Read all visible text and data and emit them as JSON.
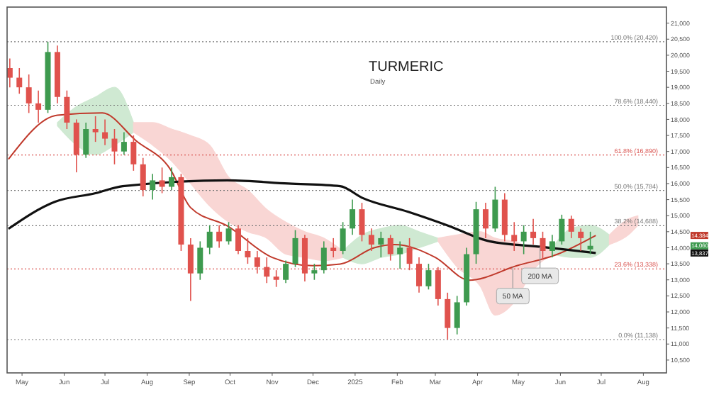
{
  "chart_data": {
    "type": "candlestick",
    "title": "TURMERIC",
    "subtitle": "Daily",
    "x": [
      "2024-04-22",
      "2024-04-29",
      "2024-05-06",
      "2024-05-13",
      "2024-05-20",
      "2024-05-27",
      "2024-06-03",
      "2024-06-10",
      "2024-06-17",
      "2024-06-24",
      "2024-07-01",
      "2024-07-08",
      "2024-07-15",
      "2024-07-22",
      "2024-07-29",
      "2024-08-05",
      "2024-08-12",
      "2024-08-19",
      "2024-08-26",
      "2024-09-02",
      "2024-09-09",
      "2024-09-16",
      "2024-09-23",
      "2024-09-30",
      "2024-10-07",
      "2024-10-14",
      "2024-10-21",
      "2024-10-28",
      "2024-11-04",
      "2024-11-11",
      "2024-11-18",
      "2024-11-25",
      "2024-12-02",
      "2024-12-09",
      "2024-12-16",
      "2024-12-23",
      "2024-12-30",
      "2025-01-06",
      "2025-01-13",
      "2025-01-20",
      "2025-01-27",
      "2025-02-03",
      "2025-02-10",
      "2025-02-17",
      "2025-02-24",
      "2025-03-03",
      "2025-03-10",
      "2025-03-17",
      "2025-03-24",
      "2025-03-31",
      "2025-04-07",
      "2025-04-14",
      "2025-04-21",
      "2025-04-28",
      "2025-05-05",
      "2025-05-12",
      "2025-05-19",
      "2025-05-26",
      "2025-06-02",
      "2025-06-09",
      "2025-06-16",
      "2025-06-23"
    ],
    "ohlc": [
      [
        19600,
        19900,
        19000,
        19300
      ],
      [
        19300,
        19600,
        18800,
        19000
      ],
      [
        19000,
        19400,
        18200,
        18500
      ],
      [
        18500,
        18900,
        17900,
        18300
      ],
      [
        18300,
        20420,
        18200,
        20100
      ],
      [
        20100,
        20300,
        18500,
        18700
      ],
      [
        18700,
        18900,
        17700,
        17900
      ],
      [
        17900,
        18000,
        16350,
        16900
      ],
      [
        16900,
        17900,
        16800,
        17700
      ],
      [
        17700,
        18100,
        17300,
        17600
      ],
      [
        17600,
        18000,
        17200,
        17400
      ],
      [
        17400,
        17700,
        16600,
        17000
      ],
      [
        17000,
        17600,
        16900,
        17300
      ],
      [
        17300,
        17500,
        16400,
        16600
      ],
      [
        16600,
        16800,
        15600,
        15800
      ],
      [
        15800,
        16300,
        15500,
        16100
      ],
      [
        16100,
        16500,
        15700,
        15900
      ],
      [
        15900,
        16500,
        15800,
        16200
      ],
      [
        16200,
        16300,
        13900,
        14100
      ],
      [
        14100,
        14300,
        12340,
        13200
      ],
      [
        13200,
        14200,
        13000,
        14000
      ],
      [
        14000,
        14700,
        13800,
        14500
      ],
      [
        14500,
        14700,
        14000,
        14200
      ],
      [
        14200,
        14800,
        14100,
        14600
      ],
      [
        14600,
        14700,
        13800,
        13900
      ],
      [
        13900,
        14300,
        13500,
        13700
      ],
      [
        13700,
        13900,
        13200,
        13400
      ],
      [
        13400,
        13700,
        12900,
        13100
      ],
      [
        13100,
        13300,
        12780,
        13000
      ],
      [
        13000,
        13600,
        12900,
        13500
      ],
      [
        13500,
        14550,
        13400,
        14300
      ],
      [
        14300,
        14400,
        12950,
        13200
      ],
      [
        13200,
        13500,
        13000,
        13300
      ],
      [
        13300,
        14200,
        13200,
        14000
      ],
      [
        14000,
        14300,
        13700,
        13900
      ],
      [
        13900,
        14800,
        13800,
        14600
      ],
      [
        14600,
        15500,
        14400,
        15200
      ],
      [
        15200,
        15400,
        14200,
        14400
      ],
      [
        14400,
        14600,
        13900,
        14100
      ],
      [
        14100,
        14500,
        13700,
        14300
      ],
      [
        14300,
        14400,
        13600,
        13800
      ],
      [
        13800,
        14200,
        13350,
        14000
      ],
      [
        14000,
        14300,
        13300,
        13500
      ],
      [
        13500,
        13700,
        12600,
        12800
      ],
      [
        12800,
        13500,
        12700,
        13300
      ],
      [
        13300,
        13400,
        12200,
        12400
      ],
      [
        12400,
        12600,
        11138,
        11500
      ],
      [
        11500,
        12500,
        11300,
        12300
      ],
      [
        12300,
        14000,
        12200,
        13800
      ],
      [
        13800,
        15430,
        13500,
        15200
      ],
      [
        15200,
        15400,
        14300,
        14600
      ],
      [
        14600,
        15900,
        14500,
        15500
      ],
      [
        15500,
        15700,
        14200,
        14400
      ],
      [
        14400,
        14800,
        13900,
        14200
      ],
      [
        14200,
        14700,
        13800,
        14500
      ],
      [
        14500,
        14900,
        14100,
        14300
      ],
      [
        14300,
        14500,
        13660,
        13900
      ],
      [
        13900,
        14400,
        13700,
        14200
      ],
      [
        14200,
        15030,
        14100,
        14900
      ],
      [
        14900,
        15000,
        14300,
        14500
      ],
      [
        14500,
        14600,
        13900,
        14300
      ],
      [
        13950,
        14500,
        13800,
        14060
      ]
    ],
    "colors": [
      "#e0524d",
      "#e0524d",
      "#e0524d",
      "#e0524d",
      "#3e9a4f",
      "#e0524d",
      "#e0524d",
      "#e0524d",
      "#3e9a4f",
      "#e0524d",
      "#e0524d",
      "#e0524d",
      "#3e9a4f",
      "#e0524d",
      "#e0524d",
      "#3e9a4f",
      "#e0524d",
      "#3e9a4f",
      "#e0524d",
      "#e0524d",
      "#3e9a4f",
      "#3e9a4f",
      "#e0524d",
      "#3e9a4f",
      "#e0524d",
      "#e0524d",
      "#e0524d",
      "#e0524d",
      "#e0524d",
      "#3e9a4f",
      "#3e9a4f",
      "#e0524d",
      "#3e9a4f",
      "#3e9a4f",
      "#e0524d",
      "#3e9a4f",
      "#3e9a4f",
      "#e0524d",
      "#e0524d",
      "#3e9a4f",
      "#e0524d",
      "#3e9a4f",
      "#e0524d",
      "#e0524d",
      "#3e9a4f",
      "#e0524d",
      "#e0524d",
      "#3e9a4f",
      "#3e9a4f",
      "#3e9a4f",
      "#e0524d",
      "#3e9a4f",
      "#e0524d",
      "#e0524d",
      "#3e9a4f",
      "#e0524d",
      "#e0524d",
      "#3e9a4f",
      "#3e9a4f",
      "#e0524d",
      "#e0524d",
      "#3e9a4f"
    ],
    "series": [
      {
        "type": "area",
        "color": "#cfe9d2",
        "x": [
          "2024-05-27",
          "2024-06-10",
          "2024-06-24",
          "2024-07-08",
          "2024-07-22"
        ],
        "values": [
          null,
          null,
          null,
          null,
          null
        ],
        "upper": [
          17900,
          18400,
          18700,
          19000,
          17900
        ],
        "lower": [
          17800,
          17200,
          16900,
          17200,
          17600
        ]
      },
      {
        "type": "area",
        "color": "#f9d6d4",
        "x": [
          "2024-07-22",
          "2024-08-05",
          "2024-08-19",
          "2024-09-02",
          "2024-09-16",
          "2024-09-30",
          "2024-10-14",
          "2024-10-28",
          "2024-11-11",
          "2024-11-25",
          "2024-12-09",
          "2024-12-23"
        ],
        "values": [
          null,
          null,
          null,
          null,
          null,
          null,
          null,
          null,
          null,
          null,
          null,
          null
        ],
        "upper": [
          17900,
          17900,
          17700,
          17500,
          17200,
          16200,
          15800,
          15200,
          14800,
          14500,
          14300,
          13900
        ],
        "lower": [
          17600,
          17200,
          16700,
          16000,
          15300,
          14800,
          14500,
          14300,
          13800,
          13700,
          13600,
          13700
        ]
      },
      {
        "type": "area",
        "color": "#cfe9d2",
        "x": [
          "2024-12-23",
          "2025-01-06",
          "2025-01-20",
          "2025-02-03",
          "2025-02-17",
          "2025-03-03"
        ],
        "values": [
          null,
          null,
          null,
          null,
          null,
          null
        ],
        "upper": [
          13900,
          14400,
          14600,
          14700,
          14500,
          14300
        ],
        "lower": [
          13700,
          13500,
          13700,
          13800,
          14000,
          14200
        ]
      },
      {
        "type": "area",
        "color": "#f9d6d4",
        "x": [
          "2025-03-03",
          "2025-03-17",
          "2025-04-03",
          "2025-04-14",
          "2025-04-28",
          "2025-05-12",
          "2025-05-26"
        ],
        "values": [
          null,
          null,
          null,
          null,
          null,
          null,
          null
        ],
        "upper": [
          14300,
          14400,
          14500,
          14300,
          14200,
          14000,
          14000
        ],
        "lower": [
          14200,
          13400,
          12800,
          11900,
          12300,
          13300,
          13800
        ]
      },
      {
        "type": "area",
        "color": "#cfe9d2",
        "x": [
          "2025-05-26",
          "2025-06-09",
          "2025-06-23",
          "2025-07-07"
        ],
        "values": [
          null,
          null,
          null,
          null
        ],
        "upper": [
          14000,
          14600,
          14700,
          14400
        ],
        "lower": [
          13800,
          13700,
          13700,
          14100
        ]
      },
      {
        "type": "area",
        "color": "#f9d6d4",
        "x": [
          "2025-07-07",
          "2025-07-21",
          "2025-07-28"
        ],
        "values": [
          null,
          null,
          null
        ],
        "upper": [
          14400,
          14900,
          15000
        ],
        "lower": [
          14100,
          14400,
          14700
        ]
      },
      {
        "type": "line",
        "color": "#c0392b",
        "x": [
          "2024-04-21",
          "2024-05-27",
          "2024-06-29",
          "2024-07-24",
          "2024-08-18",
          "2024-09-02",
          "2024-09-29",
          "2024-11-01",
          "2024-12-01",
          "2024-12-21",
          "2025-01-15",
          "2025-01-30",
          "2025-03-01",
          "2025-03-26",
          "2025-04-30",
          "2025-05-30",
          "2025-06-27"
        ],
        "values": [
          16760,
          18130,
          18200,
          17330,
          16450,
          15250,
          14680,
          13700,
          13440,
          13490,
          14000,
          14100,
          13700,
          12990,
          13440,
          13800,
          14384
        ]
      },
      {
        "type": "line",
        "color": "#111111",
        "x": [
          "2024-04-21",
          "2024-05-25",
          "2024-06-24",
          "2024-07-14",
          "2024-09-29",
          "2024-11-13",
          "2024-12-21",
          "2025-01-06",
          "2025-02-09",
          "2025-03-11",
          "2025-04-10",
          "2025-05-20",
          "2025-06-27"
        ],
        "values": [
          14590,
          15430,
          15700,
          15920,
          16100,
          16000,
          15920,
          15560,
          15120,
          14680,
          14200,
          14020,
          13837
        ]
      }
    ],
    "xlim": [
      "2024-04-20",
      "2025-08-18"
    ],
    "xticks": [
      {
        "value": "2024-05-01",
        "label": "May"
      },
      {
        "value": "2024-06-01",
        "label": "Jun"
      },
      {
        "value": "2024-07-01",
        "label": "Jul"
      },
      {
        "value": "2024-08-01",
        "label": "Aug"
      },
      {
        "value": "2024-09-01",
        "label": "Sep"
      },
      {
        "value": "2024-10-01",
        "label": "Oct"
      },
      {
        "value": "2024-11-01",
        "label": "Nov"
      },
      {
        "value": "2024-12-01",
        "label": "Dec"
      },
      {
        "value": "2025-01-01",
        "label": "2025"
      },
      {
        "value": "2025-02-01",
        "label": "Feb"
      },
      {
        "value": "2025-03-01",
        "label": "Mar"
      },
      {
        "value": "2025-04-01",
        "label": "Apr"
      },
      {
        "value": "2025-05-01",
        "label": "May"
      },
      {
        "value": "2025-06-01",
        "label": "Jun"
      },
      {
        "value": "2025-07-01",
        "label": "Jul"
      },
      {
        "value": "2025-08-01",
        "label": "Aug"
      }
    ],
    "ylim": [
      10100,
      21500
    ],
    "yticks": [
      {
        "value": 10500,
        "label": "10,500"
      },
      {
        "value": 11000,
        "label": "11,000"
      },
      {
        "value": 11500,
        "label": "11,500"
      },
      {
        "value": 12000,
        "label": "12,000"
      },
      {
        "value": 12500,
        "label": "12,500"
      },
      {
        "value": 13000,
        "label": "13,000"
      },
      {
        "value": 13500,
        "label": "13,500"
      },
      {
        "value": 14000,
        "label": "14,000"
      },
      {
        "value": 14500,
        "label": "14,500"
      },
      {
        "value": 15000,
        "label": "15,000"
      },
      {
        "value": 15500,
        "label": "15,500"
      },
      {
        "value": 16000,
        "label": "16,000"
      },
      {
        "value": 16500,
        "label": "16,500"
      },
      {
        "value": 17000,
        "label": "17,000"
      },
      {
        "value": 17500,
        "label": "17,500"
      },
      {
        "value": 18000,
        "label": "18,000"
      },
      {
        "value": 18500,
        "label": "18,500"
      },
      {
        "value": 19000,
        "label": "19,000"
      },
      {
        "value": 19500,
        "label": "19,500"
      },
      {
        "value": 20000,
        "label": "20,000"
      },
      {
        "value": 20500,
        "label": "20,500"
      },
      {
        "value": 21000,
        "label": "21,000"
      }
    ],
    "ref_lines": [
      {
        "axis": "y",
        "value": 20420,
        "label": "100.0% (20,420)",
        "color": "#777777",
        "line_style": "dotted"
      },
      {
        "axis": "y",
        "value": 18440,
        "label": "78.6% (18,440)",
        "color": "#777777",
        "line_style": "dotted"
      },
      {
        "axis": "y",
        "value": 16890,
        "label": "61.8% (16,890)",
        "color": "#d9534f",
        "line_style": "dotted"
      },
      {
        "axis": "y",
        "value": 15784,
        "label": "50.0% (15,784)",
        "color": "#777777",
        "line_style": "dotted"
      },
      {
        "axis": "y",
        "value": 14688,
        "label": "38.2% (14,688)",
        "color": "#777777",
        "line_style": "dotted"
      },
      {
        "axis": "y",
        "value": 13338,
        "label": "23.6% (13,338)",
        "color": "#d9534f",
        "line_style": "dotted"
      },
      {
        "axis": "y",
        "value": 11138,
        "label": "0.0% (11,138)",
        "color": "#777777",
        "line_style": "dotted"
      }
    ],
    "annotations": [
      {
        "text": "50 MA",
        "x": "2025-04-27",
        "y": 13400
      },
      {
        "text": "200 MA",
        "x": "2025-05-17",
        "y": 14030
      },
      "14,384",
      "14,060",
      "13,837"
    ]
  }
}
